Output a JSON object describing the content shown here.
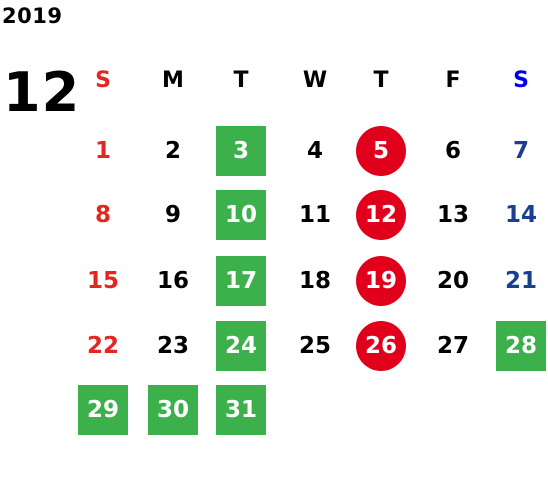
{
  "year": "2019",
  "month": "12",
  "colors": {
    "default_text": "#000000",
    "sunday_text": "#e32620",
    "saturday_text": "#0000e6",
    "saturday_date_text": "#1a3f8f",
    "green_box": "#3cb04a",
    "red_circle": "#e0001b",
    "on_mark_text": "#ffffff"
  },
  "weekday_headers": [
    "S",
    "M",
    "T",
    "W",
    "T",
    "F",
    "S"
  ],
  "weeks": [
    [
      {
        "day": "1",
        "style": "sun"
      },
      {
        "day": "2",
        "style": "plain"
      },
      {
        "day": "3",
        "style": "green"
      },
      {
        "day": "4",
        "style": "plain"
      },
      {
        "day": "5",
        "style": "red"
      },
      {
        "day": "6",
        "style": "plain"
      },
      {
        "day": "7",
        "style": "sat"
      }
    ],
    [
      {
        "day": "8",
        "style": "sun"
      },
      {
        "day": "9",
        "style": "plain"
      },
      {
        "day": "10",
        "style": "green"
      },
      {
        "day": "11",
        "style": "plain"
      },
      {
        "day": "12",
        "style": "red"
      },
      {
        "day": "13",
        "style": "plain"
      },
      {
        "day": "14",
        "style": "sat"
      }
    ],
    [
      {
        "day": "15",
        "style": "sun"
      },
      {
        "day": "16",
        "style": "plain"
      },
      {
        "day": "17",
        "style": "green"
      },
      {
        "day": "18",
        "style": "plain"
      },
      {
        "day": "19",
        "style": "red"
      },
      {
        "day": "20",
        "style": "plain"
      },
      {
        "day": "21",
        "style": "sat"
      }
    ],
    [
      {
        "day": "22",
        "style": "sun"
      },
      {
        "day": "23",
        "style": "plain"
      },
      {
        "day": "24",
        "style": "green"
      },
      {
        "day": "25",
        "style": "plain"
      },
      {
        "day": "26",
        "style": "red"
      },
      {
        "day": "27",
        "style": "plain"
      },
      {
        "day": "28",
        "style": "green"
      }
    ],
    [
      {
        "day": "29",
        "style": "green"
      },
      {
        "day": "30",
        "style": "green"
      },
      {
        "day": "31",
        "style": "green"
      }
    ]
  ]
}
